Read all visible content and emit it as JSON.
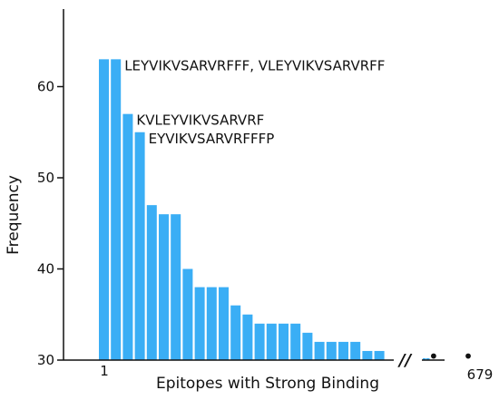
{
  "chart_data": {
    "type": "bar",
    "title": "",
    "xlabel": "Epitopes with Strong Binding",
    "ylabel": "Frequency",
    "ylim": [
      30,
      66
    ],
    "yticks": [
      30,
      40,
      50,
      60
    ],
    "x_first_label": "1",
    "x_last_label": "679",
    "axis_break_symbol": "//",
    "ellipsis": "• • •",
    "grid": false,
    "values": [
      63,
      63,
      57,
      55,
      47,
      46,
      46,
      40,
      38,
      38,
      38,
      36,
      35,
      34,
      34,
      34,
      34,
      33,
      32,
      32,
      32,
      32,
      31,
      31
    ],
    "tail_values": [
      30.2,
      30.2
    ],
    "annotations": [
      {
        "text": "LEYVIKVSARVRFFF, VLEYVIKVSARVRFF",
        "bar_index": 1
      },
      {
        "text": "KVLEYVIKVSARVRF",
        "bar_index": 2
      },
      {
        "text": "EYVIKVSARVRFFFP",
        "bar_index": 3
      }
    ],
    "colors": {
      "bar": "#3aaef5",
      "axis": "#111111"
    }
  }
}
